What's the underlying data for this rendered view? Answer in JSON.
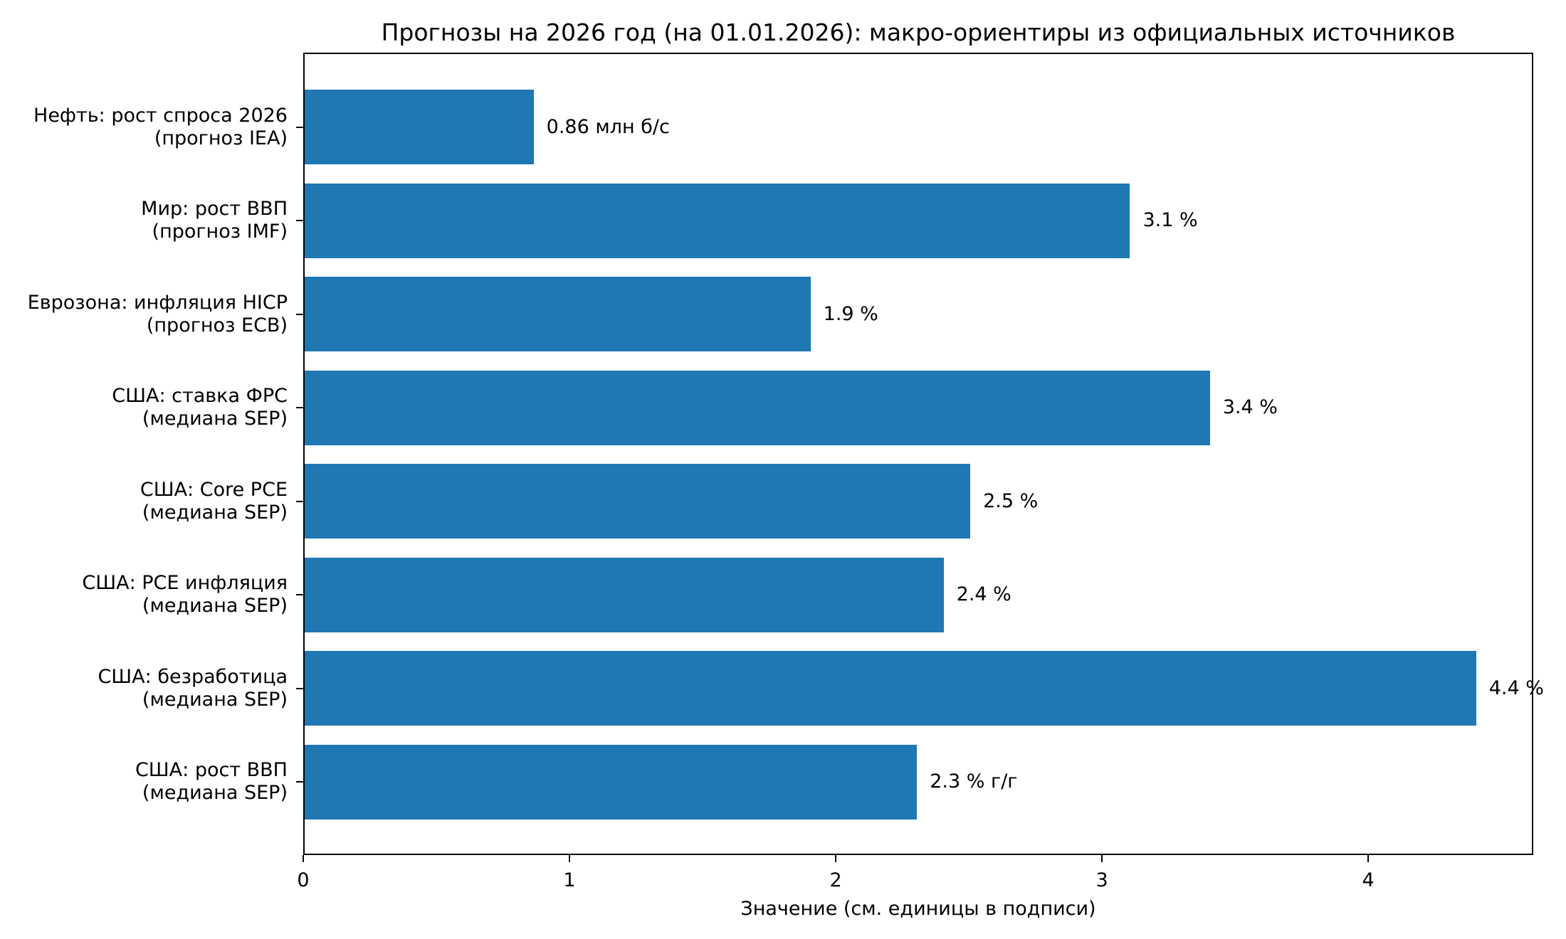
{
  "chart_data": {
    "type": "bar",
    "orientation": "horizontal",
    "title": "Прогнозы на 2026 год (на 01.01.2026): макро-ориентиры из официальных источников",
    "xlabel": "Значение (см. единицы в подписи)",
    "ylabel": "",
    "xlim": [
      0,
      4.62
    ],
    "xticks": [
      "0",
      "1",
      "2",
      "3",
      "4"
    ],
    "grid": false,
    "legend": null,
    "bar_color": "#1f77b4",
    "categories": [
      "Нефть: рост спроса 2026\n(прогноз IEA)",
      "Мир: рост ВВП\n(прогноз IMF)",
      "Еврозона: инфляция HICP\n(прогноз ECB)",
      "США: ставка ФРС\n(медиана SEP)",
      "США: Core PCE\n(медиана SEP)",
      "США: PCE инфляция\n(медиана SEP)",
      "США: безработица\n(медиана SEP)",
      "США: рост ВВП\n(медиана SEP)"
    ],
    "values": [
      0.86,
      3.1,
      1.9,
      3.4,
      2.5,
      2.4,
      4.4,
      2.3
    ],
    "value_labels": [
      "0.86 млн б/с",
      "3.1 %",
      "1.9 %",
      "3.4 %",
      "2.5 %",
      "2.4 %",
      "4.4 %",
      "2.3 % г/г"
    ]
  },
  "bars": [
    {
      "line1": "Нефть: рост спроса 2026",
      "line2": "(прогноз IEA)",
      "value": 0.86,
      "label": "0.86 млн б/с"
    },
    {
      "line1": "Мир: рост ВВП",
      "line2": "(прогноз IMF)",
      "value": 3.1,
      "label": "3.1 %"
    },
    {
      "line1": "Еврозона: инфляция HICP",
      "line2": "(прогноз ECB)",
      "value": 1.9,
      "label": "1.9 %"
    },
    {
      "line1": "США: ставка ФРС",
      "line2": "(медиана SEP)",
      "value": 3.4,
      "label": "3.4 %"
    },
    {
      "line1": "США: Core PCE",
      "line2": "(медиана SEP)",
      "value": 2.5,
      "label": "2.5 %"
    },
    {
      "line1": "США: PCE инфляция",
      "line2": "(медиана SEP)",
      "value": 2.4,
      "label": "2.4 %"
    },
    {
      "line1": "США: безработица",
      "line2": "(медиана SEP)",
      "value": 4.4,
      "label": "4.4 %"
    },
    {
      "line1": "США: рост ВВП",
      "line2": "(медиана SEP)",
      "value": 2.3,
      "label": "2.3 % г/г"
    }
  ]
}
